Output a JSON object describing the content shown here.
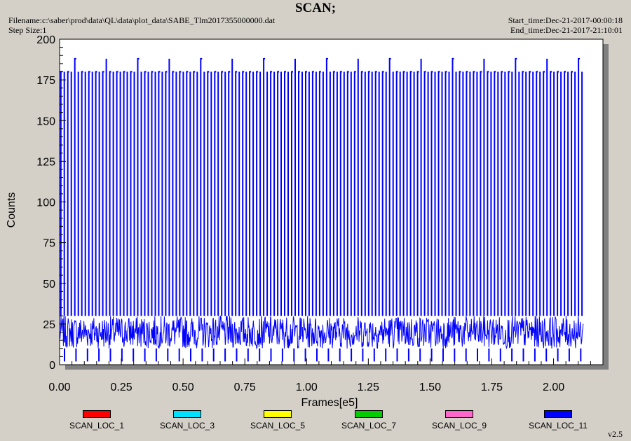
{
  "header": {
    "title": "SCAN;",
    "filename": "Filename:c:\\saber\\prod\\data\\QL\\data\\plot_data\\SABE_Tlm2017355000000.dat",
    "step_size": "Step Size:1",
    "start_time": "Start_time:Dec-21-2017-00:00:18",
    "end_time": "End_time:Dec-21-2017-21:10:01"
  },
  "version": "v2.5",
  "colors": {
    "background": "#d4d0c8",
    "plot_area": "#ffffff",
    "dominant_series": "#0000ff"
  },
  "chart_data": {
    "type": "line",
    "title": "SCAN;",
    "xlabel": "Frames[e5]",
    "ylabel": "Counts",
    "xlim": [
      0,
      2.2
    ],
    "ylim": [
      0,
      200
    ],
    "x_ticks": [
      "0.00",
      "0.25",
      "0.50",
      "0.75",
      "1.00",
      "1.25",
      "1.50",
      "1.75",
      "2.00"
    ],
    "y_ticks": [
      "0",
      "25",
      "50",
      "75",
      "100",
      "125",
      "150",
      "175",
      "200"
    ],
    "x_data_range": [
      0,
      2.12
    ],
    "grid": false,
    "legend_position": "bottom",
    "series": [
      {
        "name": "SCAN_LOC_1",
        "color": "#ff0000"
      },
      {
        "name": "SCAN_LOC_3",
        "color": "#00e0ff"
      },
      {
        "name": "SCAN_LOC_5",
        "color": "#ffff00"
      },
      {
        "name": "SCAN_LOC_7",
        "color": "#00cc00"
      },
      {
        "name": "SCAN_LOC_9",
        "color": "#ff66cc"
      },
      {
        "name": "SCAN_LOC_11",
        "color": "#0000ff",
        "pattern": "dense oscillation ~10-30 counts with periodic spikes to ~180 and ~188",
        "baseline_range": [
          10,
          30
        ],
        "spike_levels": [
          180,
          188
        ]
      }
    ]
  }
}
